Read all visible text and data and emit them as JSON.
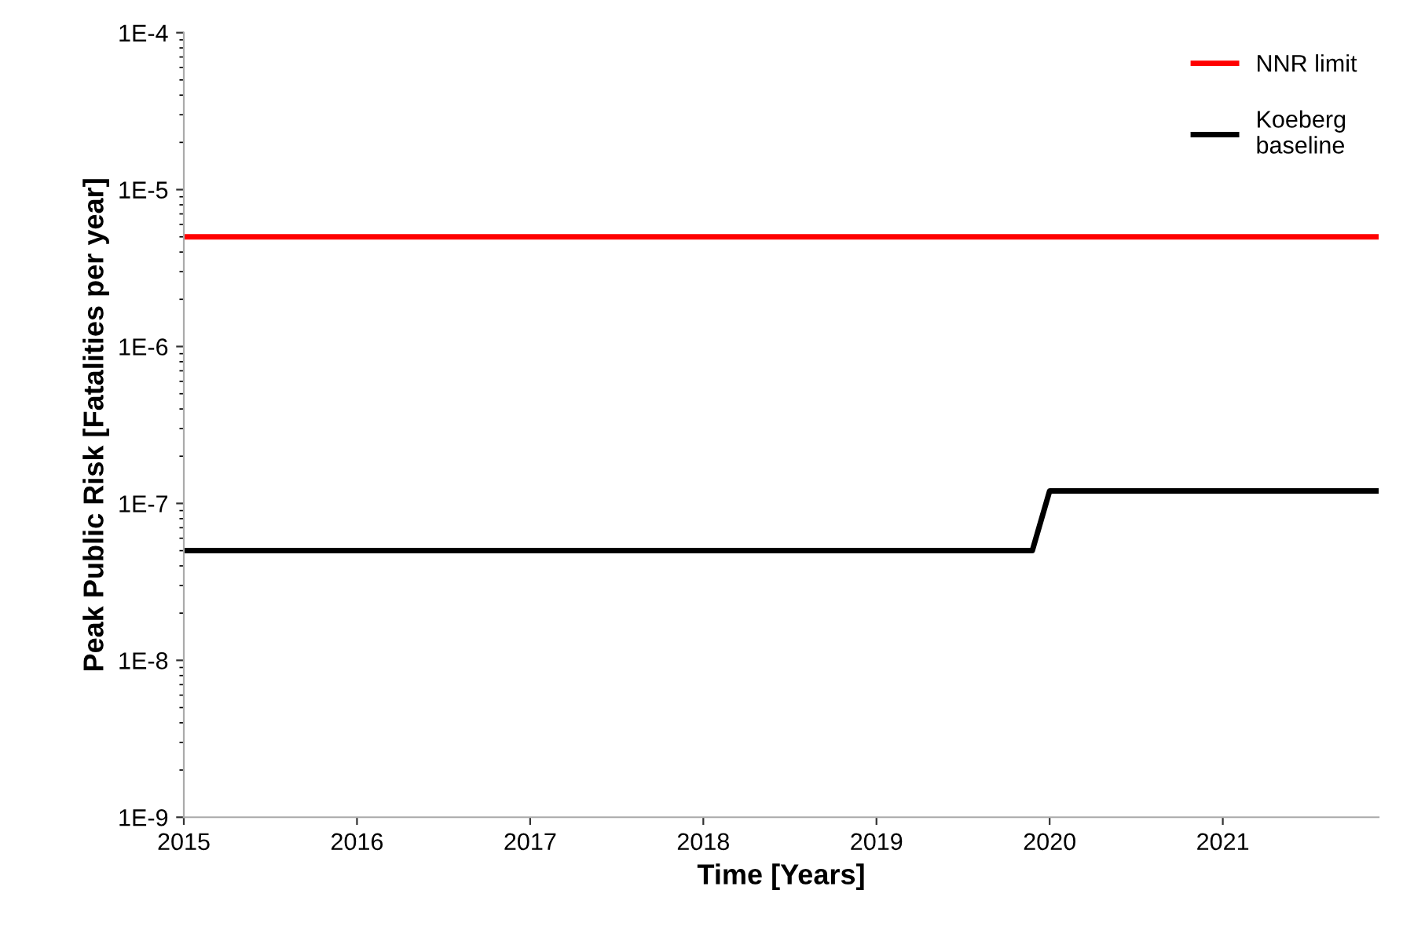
{
  "chart_data": {
    "type": "line",
    "xlabel": "Time [Years]",
    "ylabel": "Peak Public Risk [Fatalities per year]",
    "log": "y",
    "xlim": [
      2015,
      2021.9
    ],
    "xticks": [
      2015,
      2016,
      2017,
      2018,
      2019,
      2020,
      2021
    ],
    "ylim": [
      1e-09,
      0.0001
    ],
    "yticks": [
      {
        "value": 1e-09,
        "label": "1E-9"
      },
      {
        "value": 1e-08,
        "label": "1E-8"
      },
      {
        "value": 1e-07,
        "label": "1E-7"
      },
      {
        "value": 1e-06,
        "label": "1E-6"
      },
      {
        "value": 1e-05,
        "label": "1E-5"
      },
      {
        "value": 0.0001,
        "label": "1E-4"
      }
    ],
    "legend": "top right",
    "grid": false,
    "marker": "none",
    "line_style": "solid",
    "series": [
      {
        "name": "NNR limit",
        "color": "#ff0000",
        "x": [
          2015,
          2021.9
        ],
        "values": [
          5e-06,
          5e-06
        ]
      },
      {
        "name": "Koeberg\nbaseline",
        "color": "#000000",
        "x": [
          2015,
          2019.9,
          2020.0,
          2021.9
        ],
        "values": [
          5e-08,
          5e-08,
          1.2e-07,
          1.2e-07
        ]
      }
    ]
  }
}
